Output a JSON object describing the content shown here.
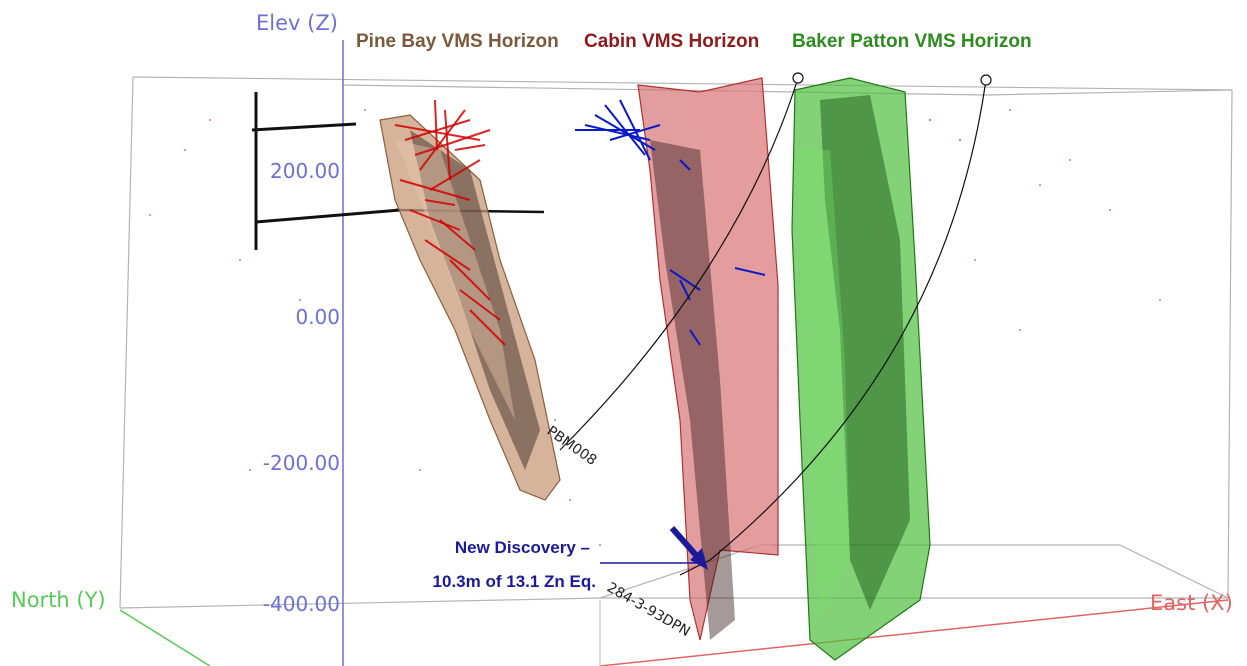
{
  "axes": {
    "z_label": "Elev (Z)",
    "y_label": "North (Y)",
    "x_label": "East (X)",
    "z_ticks": [
      "200.00",
      "0.00",
      "-200.00",
      "-400.00"
    ]
  },
  "horizons": [
    {
      "label": "Pine Bay VMS Horizon",
      "color": "#7a5a3c"
    },
    {
      "label": "Cabin VMS Horizon",
      "color": "#8e1b1b"
    },
    {
      "label": "Baker Patton VMS Horizon",
      "color": "#2e8b1f"
    }
  ],
  "drillholes": [
    {
      "label": "PBM008"
    },
    {
      "label": "284-3-93DPN"
    }
  ],
  "callout": {
    "line1": "New Discovery –",
    "line2": "10.3m of 13.1 Zn Eq.",
    "color": "#1a1a9a"
  },
  "colors": {
    "z_axis": "#6f6fd6",
    "y_axis": "#57c957",
    "x_axis": "#e06464",
    "box": "#b3b3b3"
  }
}
